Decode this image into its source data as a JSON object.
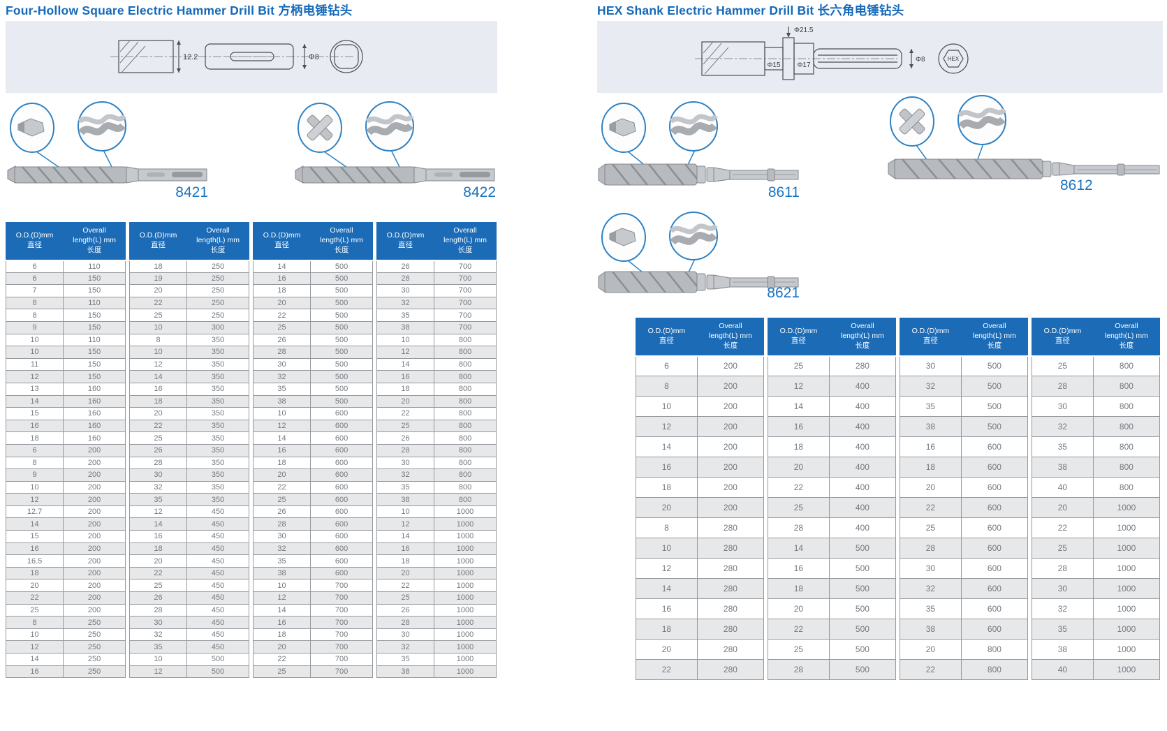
{
  "colors": {
    "title": "#1569b9",
    "model_number": "#1a73c2",
    "table_header_bg": "#1c6bb6",
    "row_stripe": "#e7e8ea",
    "drawing_band_bg": "#e9ebf2",
    "callout_circle": "#2d82c5"
  },
  "headers": {
    "od": [
      "O.D.(D)mm",
      "直径"
    ],
    "len": [
      "Overall",
      "length(L) mm",
      "长度"
    ]
  },
  "left": {
    "title": "Four-Hollow Square Electric Hammer Drill Bit 方柄电锤钻头",
    "drawing": {
      "dim_body": "12.2",
      "dim_shank": "Φ8"
    },
    "products": [
      {
        "model": "8421"
      },
      {
        "model": "8422"
      }
    ],
    "tables": [
      {
        "rows": [
          [
            "6",
            "110"
          ],
          [
            "6",
            "150"
          ],
          [
            "7",
            "150"
          ],
          [
            "8",
            "110"
          ],
          [
            "8",
            "150"
          ],
          [
            "9",
            "150"
          ],
          [
            "10",
            "110"
          ],
          [
            "10",
            "150"
          ],
          [
            "11",
            "150"
          ],
          [
            "12",
            "150"
          ],
          [
            "13",
            "160"
          ],
          [
            "14",
            "160"
          ],
          [
            "15",
            "160"
          ],
          [
            "16",
            "160"
          ],
          [
            "18",
            "160"
          ],
          [
            "6",
            "200"
          ],
          [
            "8",
            "200"
          ],
          [
            "9",
            "200"
          ],
          [
            "10",
            "200"
          ],
          [
            "12",
            "200"
          ],
          [
            "12.7",
            "200"
          ],
          [
            "14",
            "200"
          ],
          [
            "15",
            "200"
          ],
          [
            "16",
            "200"
          ],
          [
            "16.5",
            "200"
          ],
          [
            "18",
            "200"
          ],
          [
            "20",
            "200"
          ],
          [
            "22",
            "200"
          ],
          [
            "25",
            "200"
          ],
          [
            "8",
            "250"
          ],
          [
            "10",
            "250"
          ],
          [
            "12",
            "250"
          ],
          [
            "14",
            "250"
          ],
          [
            "16",
            "250"
          ]
        ]
      },
      {
        "rows": [
          [
            "18",
            "250"
          ],
          [
            "19",
            "250"
          ],
          [
            "20",
            "250"
          ],
          [
            "22",
            "250"
          ],
          [
            "25",
            "250"
          ],
          [
            "10",
            "300"
          ],
          [
            "8",
            "350"
          ],
          [
            "10",
            "350"
          ],
          [
            "12",
            "350"
          ],
          [
            "14",
            "350"
          ],
          [
            "16",
            "350"
          ],
          [
            "18",
            "350"
          ],
          [
            "20",
            "350"
          ],
          [
            "22",
            "350"
          ],
          [
            "25",
            "350"
          ],
          [
            "26",
            "350"
          ],
          [
            "28",
            "350"
          ],
          [
            "30",
            "350"
          ],
          [
            "32",
            "350"
          ],
          [
            "35",
            "350"
          ],
          [
            "12",
            "450"
          ],
          [
            "14",
            "450"
          ],
          [
            "16",
            "450"
          ],
          [
            "18",
            "450"
          ],
          [
            "20",
            "450"
          ],
          [
            "22",
            "450"
          ],
          [
            "25",
            "450"
          ],
          [
            "26",
            "450"
          ],
          [
            "28",
            "450"
          ],
          [
            "30",
            "450"
          ],
          [
            "32",
            "450"
          ],
          [
            "35",
            "450"
          ],
          [
            "10",
            "500"
          ],
          [
            "12",
            "500"
          ]
        ]
      },
      {
        "rows": [
          [
            "14",
            "500"
          ],
          [
            "16",
            "500"
          ],
          [
            "18",
            "500"
          ],
          [
            "20",
            "500"
          ],
          [
            "22",
            "500"
          ],
          [
            "25",
            "500"
          ],
          [
            "26",
            "500"
          ],
          [
            "28",
            "500"
          ],
          [
            "30",
            "500"
          ],
          [
            "32",
            "500"
          ],
          [
            "35",
            "500"
          ],
          [
            "38",
            "500"
          ],
          [
            "10",
            "600"
          ],
          [
            "12",
            "600"
          ],
          [
            "14",
            "600"
          ],
          [
            "16",
            "600"
          ],
          [
            "18",
            "600"
          ],
          [
            "20",
            "600"
          ],
          [
            "22",
            "600"
          ],
          [
            "25",
            "600"
          ],
          [
            "26",
            "600"
          ],
          [
            "28",
            "600"
          ],
          [
            "30",
            "600"
          ],
          [
            "32",
            "600"
          ],
          [
            "35",
            "600"
          ],
          [
            "38",
            "600"
          ],
          [
            "10",
            "700"
          ],
          [
            "12",
            "700"
          ],
          [
            "14",
            "700"
          ],
          [
            "16",
            "700"
          ],
          [
            "18",
            "700"
          ],
          [
            "20",
            "700"
          ],
          [
            "22",
            "700"
          ],
          [
            "25",
            "700"
          ]
        ]
      },
      {
        "rows": [
          [
            "26",
            "700"
          ],
          [
            "28",
            "700"
          ],
          [
            "30",
            "700"
          ],
          [
            "32",
            "700"
          ],
          [
            "35",
            "700"
          ],
          [
            "38",
            "700"
          ],
          [
            "10",
            "800"
          ],
          [
            "12",
            "800"
          ],
          [
            "14",
            "800"
          ],
          [
            "16",
            "800"
          ],
          [
            "18",
            "800"
          ],
          [
            "20",
            "800"
          ],
          [
            "22",
            "800"
          ],
          [
            "25",
            "800"
          ],
          [
            "26",
            "800"
          ],
          [
            "28",
            "800"
          ],
          [
            "30",
            "800"
          ],
          [
            "32",
            "800"
          ],
          [
            "35",
            "800"
          ],
          [
            "38",
            "800"
          ],
          [
            "10",
            "1000"
          ],
          [
            "12",
            "1000"
          ],
          [
            "14",
            "1000"
          ],
          [
            "16",
            "1000"
          ],
          [
            "18",
            "1000"
          ],
          [
            "20",
            "1000"
          ],
          [
            "22",
            "1000"
          ],
          [
            "25",
            "1000"
          ],
          [
            "26",
            "1000"
          ],
          [
            "28",
            "1000"
          ],
          [
            "30",
            "1000"
          ],
          [
            "32",
            "1000"
          ],
          [
            "35",
            "1000"
          ],
          [
            "38",
            "1000"
          ]
        ]
      }
    ]
  },
  "right": {
    "title": "HEX Shank Electric Hammer Drill Bit 长六角电锤钻头",
    "drawing": {
      "dim_collar": "Φ21.5",
      "dim_neck": "Φ15",
      "dim_mid": "Φ17",
      "dim_shank": "Φ8",
      "end_label": "HEX"
    },
    "products": [
      {
        "model": "8611"
      },
      {
        "model": "8612"
      },
      {
        "model": "8621"
      }
    ],
    "tables": [
      {
        "rows": [
          [
            "6",
            "200"
          ],
          [
            "8",
            "200"
          ],
          [
            "10",
            "200"
          ],
          [
            "12",
            "200"
          ],
          [
            "14",
            "200"
          ],
          [
            "16",
            "200"
          ],
          [
            "18",
            "200"
          ],
          [
            "20",
            "200"
          ],
          [
            "8",
            "280"
          ],
          [
            "10",
            "280"
          ],
          [
            "12",
            "280"
          ],
          [
            "14",
            "280"
          ],
          [
            "16",
            "280"
          ],
          [
            "18",
            "280"
          ],
          [
            "20",
            "280"
          ],
          [
            "22",
            "280"
          ]
        ]
      },
      {
        "rows": [
          [
            "25",
            "280"
          ],
          [
            "12",
            "400"
          ],
          [
            "14",
            "400"
          ],
          [
            "16",
            "400"
          ],
          [
            "18",
            "400"
          ],
          [
            "20",
            "400"
          ],
          [
            "22",
            "400"
          ],
          [
            "25",
            "400"
          ],
          [
            "28",
            "400"
          ],
          [
            "14",
            "500"
          ],
          [
            "16",
            "500"
          ],
          [
            "18",
            "500"
          ],
          [
            "20",
            "500"
          ],
          [
            "22",
            "500"
          ],
          [
            "25",
            "500"
          ],
          [
            "28",
            "500"
          ]
        ]
      },
      {
        "rows": [
          [
            "30",
            "500"
          ],
          [
            "32",
            "500"
          ],
          [
            "35",
            "500"
          ],
          [
            "38",
            "500"
          ],
          [
            "16",
            "600"
          ],
          [
            "18",
            "600"
          ],
          [
            "20",
            "600"
          ],
          [
            "22",
            "600"
          ],
          [
            "25",
            "600"
          ],
          [
            "28",
            "600"
          ],
          [
            "30",
            "600"
          ],
          [
            "32",
            "600"
          ],
          [
            "35",
            "600"
          ],
          [
            "38",
            "600"
          ],
          [
            "20",
            "800"
          ],
          [
            "22",
            "800"
          ]
        ]
      },
      {
        "rows": [
          [
            "25",
            "800"
          ],
          [
            "28",
            "800"
          ],
          [
            "30",
            "800"
          ],
          [
            "32",
            "800"
          ],
          [
            "35",
            "800"
          ],
          [
            "38",
            "800"
          ],
          [
            "40",
            "800"
          ],
          [
            "20",
            "1000"
          ],
          [
            "22",
            "1000"
          ],
          [
            "25",
            "1000"
          ],
          [
            "28",
            "1000"
          ],
          [
            "30",
            "1000"
          ],
          [
            "32",
            "1000"
          ],
          [
            "35",
            "1000"
          ],
          [
            "38",
            "1000"
          ],
          [
            "40",
            "1000"
          ]
        ]
      }
    ]
  }
}
